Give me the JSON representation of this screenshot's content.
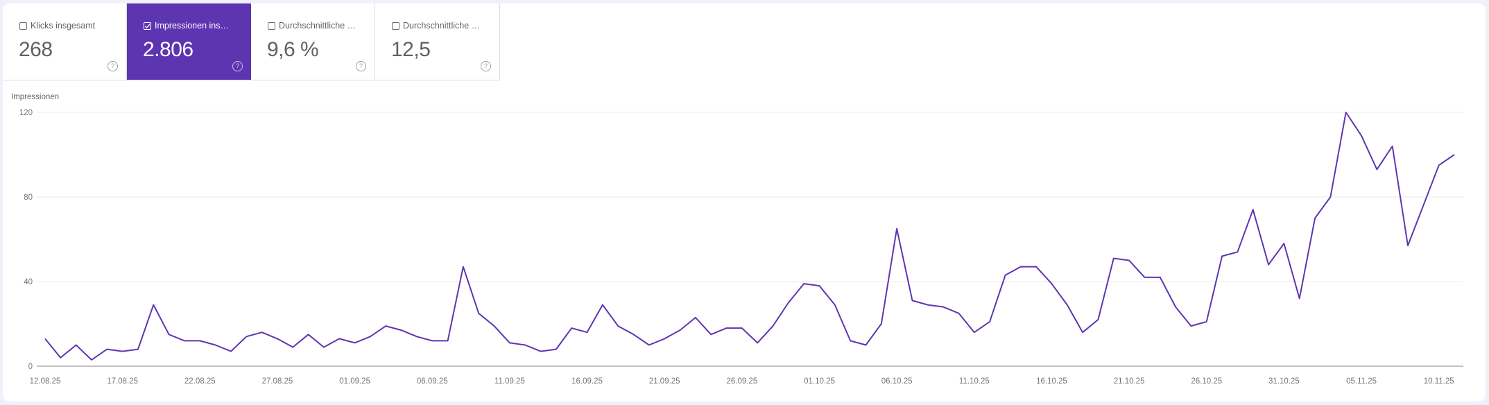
{
  "metrics": [
    {
      "label": "Klicks insgesamt",
      "value": "268",
      "checked": false
    },
    {
      "label": "Impressionen ins…",
      "value": "2.806",
      "checked": true
    },
    {
      "label": "Durchschnittliche …",
      "value": "9,6 %",
      "checked": false
    },
    {
      "label": "Durchschnittliche …",
      "value": "12,5",
      "checked": false
    }
  ],
  "icons": {
    "help": "help-circle-icon",
    "checkbox": "checkbox-icon"
  },
  "colors": {
    "accent": "#5e35b1",
    "line": "#5e35b1",
    "grid": "#ebebeb",
    "axis": "#9e9e9e",
    "background": "#eef1f8"
  },
  "chart": {
    "y_title": "Impressionen"
  },
  "chart_data": {
    "type": "line",
    "title": "",
    "xlabel": "",
    "ylabel": "Impressionen",
    "ylim": [
      0,
      120
    ],
    "yticks": [
      0,
      40,
      80,
      120
    ],
    "grid": true,
    "legend": "none",
    "x_start": "12.08.25",
    "x_end": "11.11.25",
    "xtick_labels": [
      "12.08.25",
      "17.08.25",
      "22.08.25",
      "27.08.25",
      "01.09.25",
      "06.09.25",
      "11.09.25",
      "16.09.25",
      "21.09.25",
      "26.09.25",
      "01.10.25",
      "06.10.25",
      "11.10.25",
      "16.10.25",
      "21.10.25",
      "26.10.25",
      "31.10.25",
      "05.11.25",
      "10.11.25"
    ],
    "series": [
      {
        "name": "Impressionen",
        "color": "#5e35b1",
        "values": [
          13,
          4,
          10,
          3,
          8,
          7,
          8,
          29,
          15,
          12,
          12,
          10,
          7,
          14,
          16,
          13,
          9,
          15,
          9,
          13,
          11,
          14,
          19,
          17,
          14,
          12,
          12,
          47,
          25,
          19,
          11,
          10,
          7,
          8,
          18,
          16,
          29,
          19,
          15,
          10,
          13,
          17,
          23,
          15,
          18,
          18,
          11,
          19,
          30,
          39,
          38,
          29,
          12,
          10,
          20,
          65,
          31,
          29,
          28,
          25,
          16,
          21,
          43,
          47,
          47,
          39,
          29,
          16,
          22,
          51,
          50,
          42,
          42,
          28,
          19,
          21,
          52,
          54,
          74,
          48,
          58,
          32,
          70,
          80,
          120,
          109,
          93,
          104,
          57,
          76,
          95,
          100
        ]
      }
    ]
  }
}
